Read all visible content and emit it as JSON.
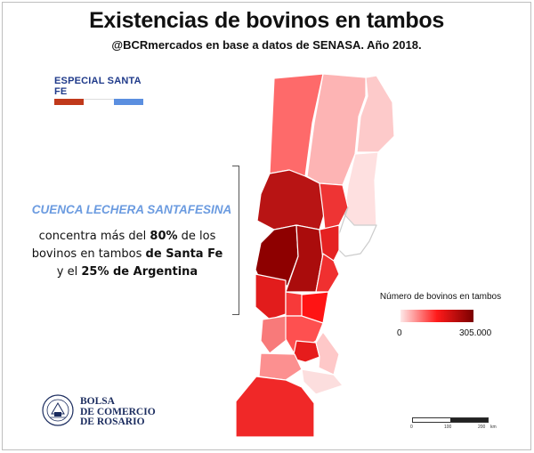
{
  "header": {
    "title": "Existencias de bovinos en tambos",
    "subtitle": "@BCRmercados en base a datos de SENASA. Año 2018."
  },
  "badge": {
    "label": "ESPECIAL SANTA FE",
    "stripe_colors": [
      "#c0391b",
      "#ffffff",
      "#5b8fe0"
    ]
  },
  "annotation": {
    "heading": "CUENCA LECHERA SANTAFESINA",
    "line1_pre": "concentra más del ",
    "line1_pct": "80%",
    "line1_post": " de los",
    "line2_pre": "bovinos en tambos ",
    "line2_bold": "de Santa Fe",
    "line3_pre": "y el ",
    "line3_bold": "25% de Argentina"
  },
  "legend": {
    "title": "Número de bovinos en tambos",
    "min_label": "0",
    "max_label": "305.000",
    "color_low": "#fde9e9",
    "color_mid": "#ff1a1a",
    "color_high": "#7a0000"
  },
  "scale": {
    "ticks": [
      "0",
      "100",
      "200",
      "km"
    ]
  },
  "logo": {
    "line1": "BOLSA",
    "line2": "DE COMERCIO",
    "line3": "DE ROSARIO",
    "ring_text": "BOLSA DE COMERCIO DE ROSARIO",
    "color": "#1a2b5e"
  }
}
